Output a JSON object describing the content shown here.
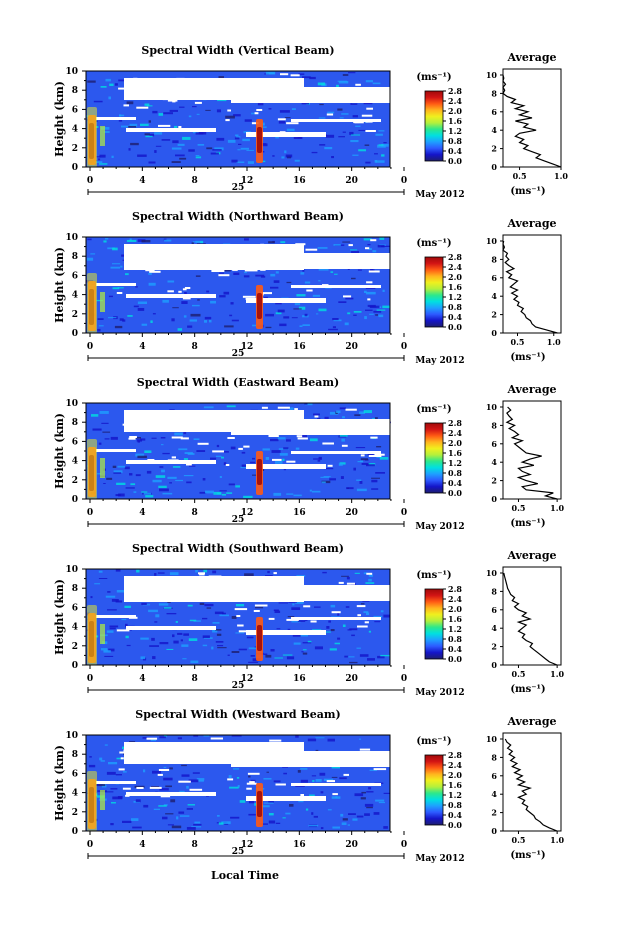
{
  "panels": [
    {
      "title": "Spectral Width (Vertical Beam)",
      "avg_x_ticks": [
        "0.5",
        "1.0"
      ],
      "avg_range": [
        0.3,
        1.0
      ],
      "avg_profile": [
        1.0,
        0.9,
        0.8,
        0.7,
        0.75,
        0.65,
        0.55,
        0.6,
        0.5,
        0.55,
        0.45,
        0.5,
        0.7,
        0.55,
        0.6,
        0.45,
        0.65,
        0.5,
        0.6,
        0.45,
        0.55,
        0.4,
        0.45,
        0.35,
        0.3,
        0.32,
        0.3,
        0.33,
        0.3,
        0.31,
        0.3
      ]
    },
    {
      "title": "Spectral Width (Northward Beam)",
      "avg_x_ticks": [
        "0.5",
        "1.0"
      ],
      "avg_range": [
        0.3,
        1.1
      ],
      "avg_profile": [
        1.05,
        0.9,
        0.75,
        0.7,
        0.68,
        0.62,
        0.6,
        0.55,
        0.58,
        0.5,
        0.52,
        0.45,
        0.5,
        0.42,
        0.5,
        0.4,
        0.45,
        0.5,
        0.38,
        0.42,
        0.35,
        0.45,
        0.38,
        0.33,
        0.38,
        0.34,
        0.36,
        0.3,
        0.32,
        0.3,
        0.31
      ]
    },
    {
      "title": "Spectral Width (Eastward Beam)",
      "avg_x_ticks": [
        "0.5",
        "1.0"
      ],
      "avg_range": [
        0.3,
        1.05
      ],
      "avg_profile": [
        1.0,
        0.85,
        0.95,
        0.6,
        0.55,
        0.75,
        0.6,
        0.5,
        0.65,
        0.55,
        0.5,
        0.7,
        0.55,
        0.65,
        0.8,
        0.6,
        0.55,
        0.5,
        0.45,
        0.55,
        0.42,
        0.5,
        0.45,
        0.38,
        0.45,
        0.35,
        0.42,
        0.38,
        0.35,
        0.4,
        0.36
      ]
    },
    {
      "title": "Spectral Width (Southward Beam)",
      "avg_x_ticks": [
        "0.5",
        "1.0"
      ],
      "avg_range": [
        0.3,
        1.05
      ],
      "avg_profile": [
        1.0,
        0.9,
        0.85,
        0.8,
        0.75,
        0.7,
        0.65,
        0.68,
        0.6,
        0.55,
        0.58,
        0.5,
        0.55,
        0.6,
        0.5,
        0.65,
        0.55,
        0.6,
        0.5,
        0.45,
        0.5,
        0.42,
        0.45,
        0.4,
        0.38,
        0.36,
        0.35,
        0.34,
        0.33,
        0.32,
        0.31
      ]
    },
    {
      "title": "Spectral Width (Westward Beam)",
      "avg_x_ticks": [
        "0.5",
        "1.0"
      ],
      "avg_range": [
        0.3,
        1.05
      ],
      "avg_profile": [
        1.0,
        0.9,
        0.82,
        0.78,
        0.72,
        0.7,
        0.65,
        0.6,
        0.62,
        0.55,
        0.58,
        0.5,
        0.6,
        0.55,
        0.65,
        0.5,
        0.58,
        0.48,
        0.55,
        0.45,
        0.52,
        0.42,
        0.48,
        0.4,
        0.45,
        0.38,
        0.42,
        0.36,
        0.4,
        0.35,
        0.33
      ]
    }
  ],
  "shared": {
    "ylabel": "Height (km)",
    "y_ticks": [
      "0",
      "2",
      "4",
      "6",
      "8",
      "10"
    ],
    "x_ticks": [
      "0",
      "4",
      "8",
      "12",
      "16",
      "20",
      "0"
    ],
    "date_day": "25",
    "date_month": "May 2012",
    "cbar_unit": "(ms⁻¹)",
    "cbar_ticks": [
      "0.0",
      "0.4",
      "0.8",
      "1.2",
      "1.6",
      "2.0",
      "2.4",
      "2.8"
    ],
    "avg_title": "Average",
    "avg_xlabel": "(ms⁻¹)",
    "bottom_xlabel": "Local Time"
  },
  "colors": {
    "background_field": "#2c58ee",
    "gap": "#ffffff",
    "colormap": [
      "#1e1e6e",
      "#1414c8",
      "#2d5aff",
      "#1ea0ff",
      "#00e0e0",
      "#2ee88a",
      "#b4f03c",
      "#f0f01e",
      "#ffb41e",
      "#ff5a14",
      "#d21414",
      "#a00a0a"
    ]
  },
  "chart_data": [
    {
      "type": "heatmap",
      "title": "Spectral Width (Vertical Beam)",
      "xlabel": "Local Time",
      "ylabel": "Height (km)",
      "xlim": [
        0,
        24
      ],
      "ylim": [
        0,
        10
      ],
      "zlim": [
        0.0,
        2.8
      ],
      "zlabel": "(ms⁻¹)"
    },
    {
      "type": "heatmap",
      "title": "Spectral Width (Northward Beam)",
      "xlabel": "Local Time",
      "ylabel": "Height (km)",
      "xlim": [
        0,
        24
      ],
      "ylim": [
        0,
        10
      ],
      "zlim": [
        0.0,
        2.8
      ],
      "zlabel": "(ms⁻¹)"
    },
    {
      "type": "heatmap",
      "title": "Spectral Width (Eastward Beam)",
      "xlabel": "Local Time",
      "ylabel": "Height (km)",
      "xlim": [
        0,
        24
      ],
      "ylim": [
        0,
        10
      ],
      "zlim": [
        0.0,
        2.8
      ],
      "zlabel": "(ms⁻¹)"
    },
    {
      "type": "heatmap",
      "title": "Spectral Width (Southward Beam)",
      "xlabel": "Local Time",
      "ylabel": "Height (km)",
      "xlim": [
        0,
        24
      ],
      "ylim": [
        0,
        10
      ],
      "zlim": [
        0.0,
        2.8
      ],
      "zlabel": "(ms⁻¹)"
    },
    {
      "type": "heatmap",
      "title": "Spectral Width (Westward Beam)",
      "xlabel": "Local Time",
      "ylabel": "Height (km)",
      "xlim": [
        0,
        24
      ],
      "ylim": [
        0,
        10
      ],
      "zlim": [
        0.0,
        2.8
      ],
      "zlabel": "(ms⁻¹)"
    },
    {
      "type": "line",
      "title": "Average",
      "xlabel": "(ms⁻¹)",
      "note": "mean spectral width vs height (0–10 km) for each beam; values in avg_profile, index 0 = 0 km, step ≈ 0.33 km"
    }
  ]
}
